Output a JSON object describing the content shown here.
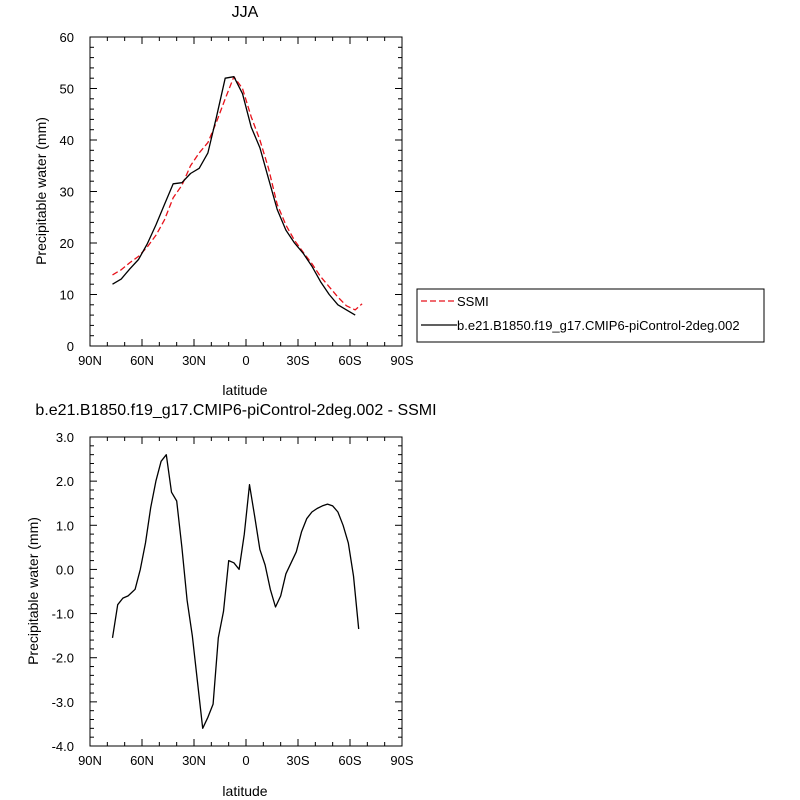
{
  "chart_data": [
    {
      "type": "line",
      "title": "JJA",
      "xlabel": "latitude",
      "ylabel": "Precipitable water (mm)",
      "xlim": [
        90,
        -90
      ],
      "ylim": [
        0,
        60
      ],
      "x_ticks": [
        90,
        60,
        30,
        0,
        -30,
        -60,
        -90
      ],
      "x_tick_labels": [
        "90N",
        "60N",
        "30N",
        "0",
        "30S",
        "60S",
        "90S"
      ],
      "y_ticks": [
        0,
        10,
        20,
        30,
        40,
        50,
        60
      ],
      "y_tick_labels": [
        "0",
        "10",
        "20",
        "30",
        "40",
        "50",
        "60"
      ],
      "legend": {
        "placement": "right"
      },
      "series": [
        {
          "name": "SSMI",
          "color": "#e8121b",
          "dash": "dashed",
          "x": [
            77,
            72,
            67,
            62,
            57,
            52,
            47,
            42,
            37,
            32,
            27,
            22,
            17,
            12,
            7,
            2,
            -3,
            -8,
            -13,
            -18,
            -23,
            -28,
            -33,
            -38,
            -43,
            -48,
            -53,
            -58,
            -63,
            -67
          ],
          "y": [
            13.8,
            14.8,
            16.2,
            17.4,
            19.2,
            21.5,
            24.5,
            28.8,
            31.2,
            35,
            37.5,
            39.5,
            43.5,
            48,
            52.3,
            50,
            44.5,
            40,
            34.5,
            27.5,
            23.5,
            20.5,
            18.2,
            16,
            13.5,
            11.5,
            9.5,
            7.8,
            7,
            8.2
          ]
        },
        {
          "name": "b.e21.B1850.f19_g17.CMIP6-piControl-2deg.002",
          "color": "#000000",
          "dash": "solid",
          "x": [
            77,
            72,
            67,
            62,
            57,
            52,
            47,
            42,
            37,
            32,
            27,
            22,
            17,
            12,
            7,
            2,
            -3,
            -8,
            -13,
            -18,
            -23,
            -28,
            -33,
            -38,
            -43,
            -48,
            -53,
            -58,
            -63
          ],
          "y": [
            12,
            13,
            15,
            16.8,
            19.8,
            23.5,
            27.5,
            31.5,
            31.7,
            33.5,
            34.5,
            37.5,
            44.5,
            52,
            52.3,
            49,
            42.5,
            38.5,
            32.5,
            26.5,
            22.5,
            20,
            18,
            15.5,
            12.5,
            10,
            8,
            7,
            6
          ]
        }
      ]
    },
    {
      "type": "line",
      "title": "b.e21.B1850.f19_g17.CMIP6-piControl-2deg.002 - SSMI",
      "xlabel": "latitude",
      "ylabel": "Precipitable water (mm)",
      "xlim": [
        90,
        -90
      ],
      "ylim": [
        -4,
        3
      ],
      "x_ticks": [
        90,
        60,
        30,
        0,
        -30,
        -60,
        -90
      ],
      "x_tick_labels": [
        "90N",
        "60N",
        "30N",
        "0",
        "30S",
        "60S",
        "90S"
      ],
      "y_ticks": [
        -4,
        -3,
        -2,
        -1,
        0,
        1,
        2,
        3
      ],
      "y_tick_labels": [
        "-4.0",
        "-3.0",
        "-2.0",
        "-1.0",
        "0.0",
        "1.0",
        "2.0",
        "3.0"
      ],
      "series": [
        {
          "color": "#000000",
          "dash": "solid",
          "x": [
            77,
            74,
            71,
            68,
            64,
            61,
            58,
            55,
            52,
            49,
            46,
            43,
            40,
            37,
            34,
            31,
            28,
            25,
            22,
            19,
            16,
            13,
            10,
            7,
            4,
            1,
            -2,
            -5,
            -8,
            -11,
            -14,
            -17,
            -20,
            -23,
            -26,
            -29,
            -32,
            -35,
            -38,
            -41,
            -44,
            -47,
            -50,
            -53,
            -56,
            -59,
            -62,
            -65
          ],
          "y": [
            -1.55,
            -0.8,
            -0.65,
            -0.6,
            -0.45,
            0,
            0.6,
            1.4,
            2.0,
            2.45,
            2.6,
            1.75,
            1.55,
            0.5,
            -0.7,
            -1.5,
            -2.55,
            -3.6,
            -3.35,
            -3.05,
            -1.55,
            -0.95,
            0.2,
            0.15,
            0,
            0.8,
            1.92,
            1.2,
            0.45,
            0.1,
            -0.45,
            -0.85,
            -0.6,
            -0.1,
            0.15,
            0.4,
            0.85,
            1.15,
            1.3,
            1.38,
            1.44,
            1.48,
            1.44,
            1.3,
            1.0,
            0.6,
            -0.15,
            -1.35
          ]
        }
      ]
    }
  ]
}
